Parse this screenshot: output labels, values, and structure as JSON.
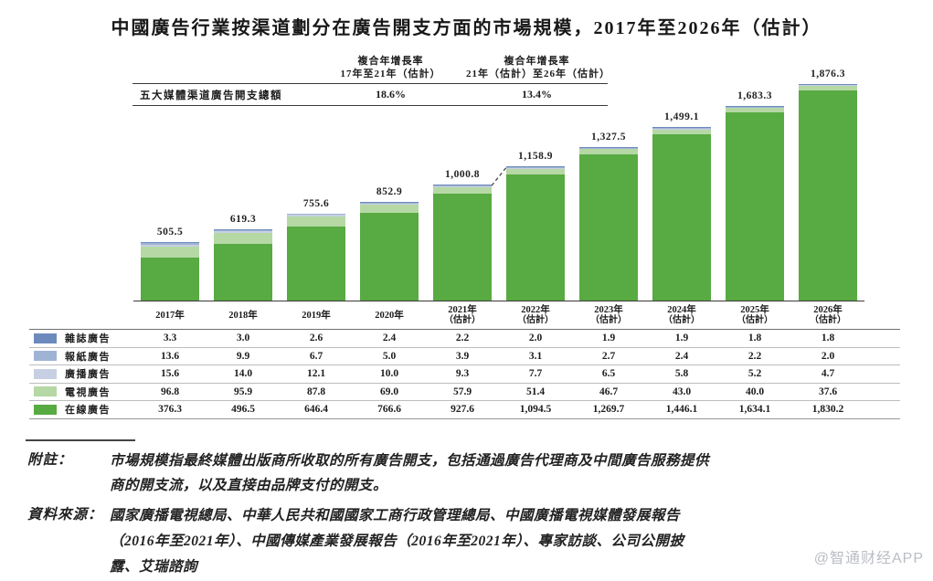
{
  "title": "中國廣告行業按渠道劃分在廣告開支方面的市場規模，2017年至2026年（估計）",
  "cagr_table": {
    "row_label": "五大媒體渠道廣告開支總額",
    "columns": [
      {
        "header_line1": "複合年增長率",
        "header_line2": "17年至21年（估計）",
        "value": "18.6%"
      },
      {
        "header_line1": "複合年增長率",
        "header_line2": "21年（估計）至26年（估計）",
        "value": "13.4%"
      }
    ]
  },
  "chart_data": {
    "type": "bar",
    "stacked": true,
    "grid": false,
    "legend_position": "table-left",
    "categories": [
      "2017年",
      "2018年",
      "2019年",
      "2020年",
      "2021年",
      "2022年",
      "2023年",
      "2024年",
      "2025年",
      "2026年"
    ],
    "category_sublabels": [
      "",
      "",
      "",
      "",
      "（估計）",
      "（估計）",
      "（估計）",
      "（估計）",
      "（估計）",
      "（估計）"
    ],
    "series": [
      {
        "name": "雜誌廣告",
        "color": "#6d8abc",
        "values": [
          3.3,
          3.0,
          2.6,
          2.4,
          2.2,
          2.0,
          1.9,
          1.9,
          1.8,
          1.8
        ]
      },
      {
        "name": "報紙廣告",
        "color": "#9fb3d5",
        "values": [
          13.6,
          9.9,
          6.7,
          5.0,
          3.9,
          3.1,
          2.7,
          2.4,
          2.2,
          2.0
        ]
      },
      {
        "name": "廣播廣告",
        "color": "#c7d0e2",
        "values": [
          15.6,
          14.0,
          12.1,
          10.0,
          9.3,
          7.7,
          6.5,
          5.8,
          5.2,
          4.7
        ]
      },
      {
        "name": "電視廣告",
        "color": "#b5d8a5",
        "values": [
          96.8,
          95.9,
          87.8,
          69.0,
          57.9,
          51.4,
          46.7,
          43.0,
          40.0,
          37.6
        ]
      },
      {
        "name": "在線廣告",
        "color": "#58aa42",
        "values": [
          376.3,
          496.5,
          646.4,
          766.6,
          927.6,
          1094.5,
          1269.7,
          1446.1,
          1634.1,
          1830.2
        ]
      }
    ],
    "totals": [
      505.5,
      619.3,
      755.6,
      852.9,
      1000.8,
      1158.9,
      1327.5,
      1499.1,
      1683.3,
      1876.3
    ],
    "estimate_start_index": 4,
    "ylim": [
      0,
      1908
    ]
  },
  "footnote": {
    "label": "附註：",
    "lines": [
      "市場規模指最終媒體出版商所收取的所有廣告開支，包括通過廣告代理商及中間廣告服務提供",
      "商的開支流，以及直接由品牌支付的開支。"
    ]
  },
  "source": {
    "label": "資料來源：",
    "lines": [
      "國家廣播電視總局、中華人民共和國國家工商行政管理總局、中國廣播電視媒體發展報告",
      "（2016年至2021年）、中國傳媒產業發展報告（2016年至2021年）、專家訪談、公司公開披",
      "露、艾瑞諮詢"
    ]
  },
  "watermark": "@智通财经APP"
}
